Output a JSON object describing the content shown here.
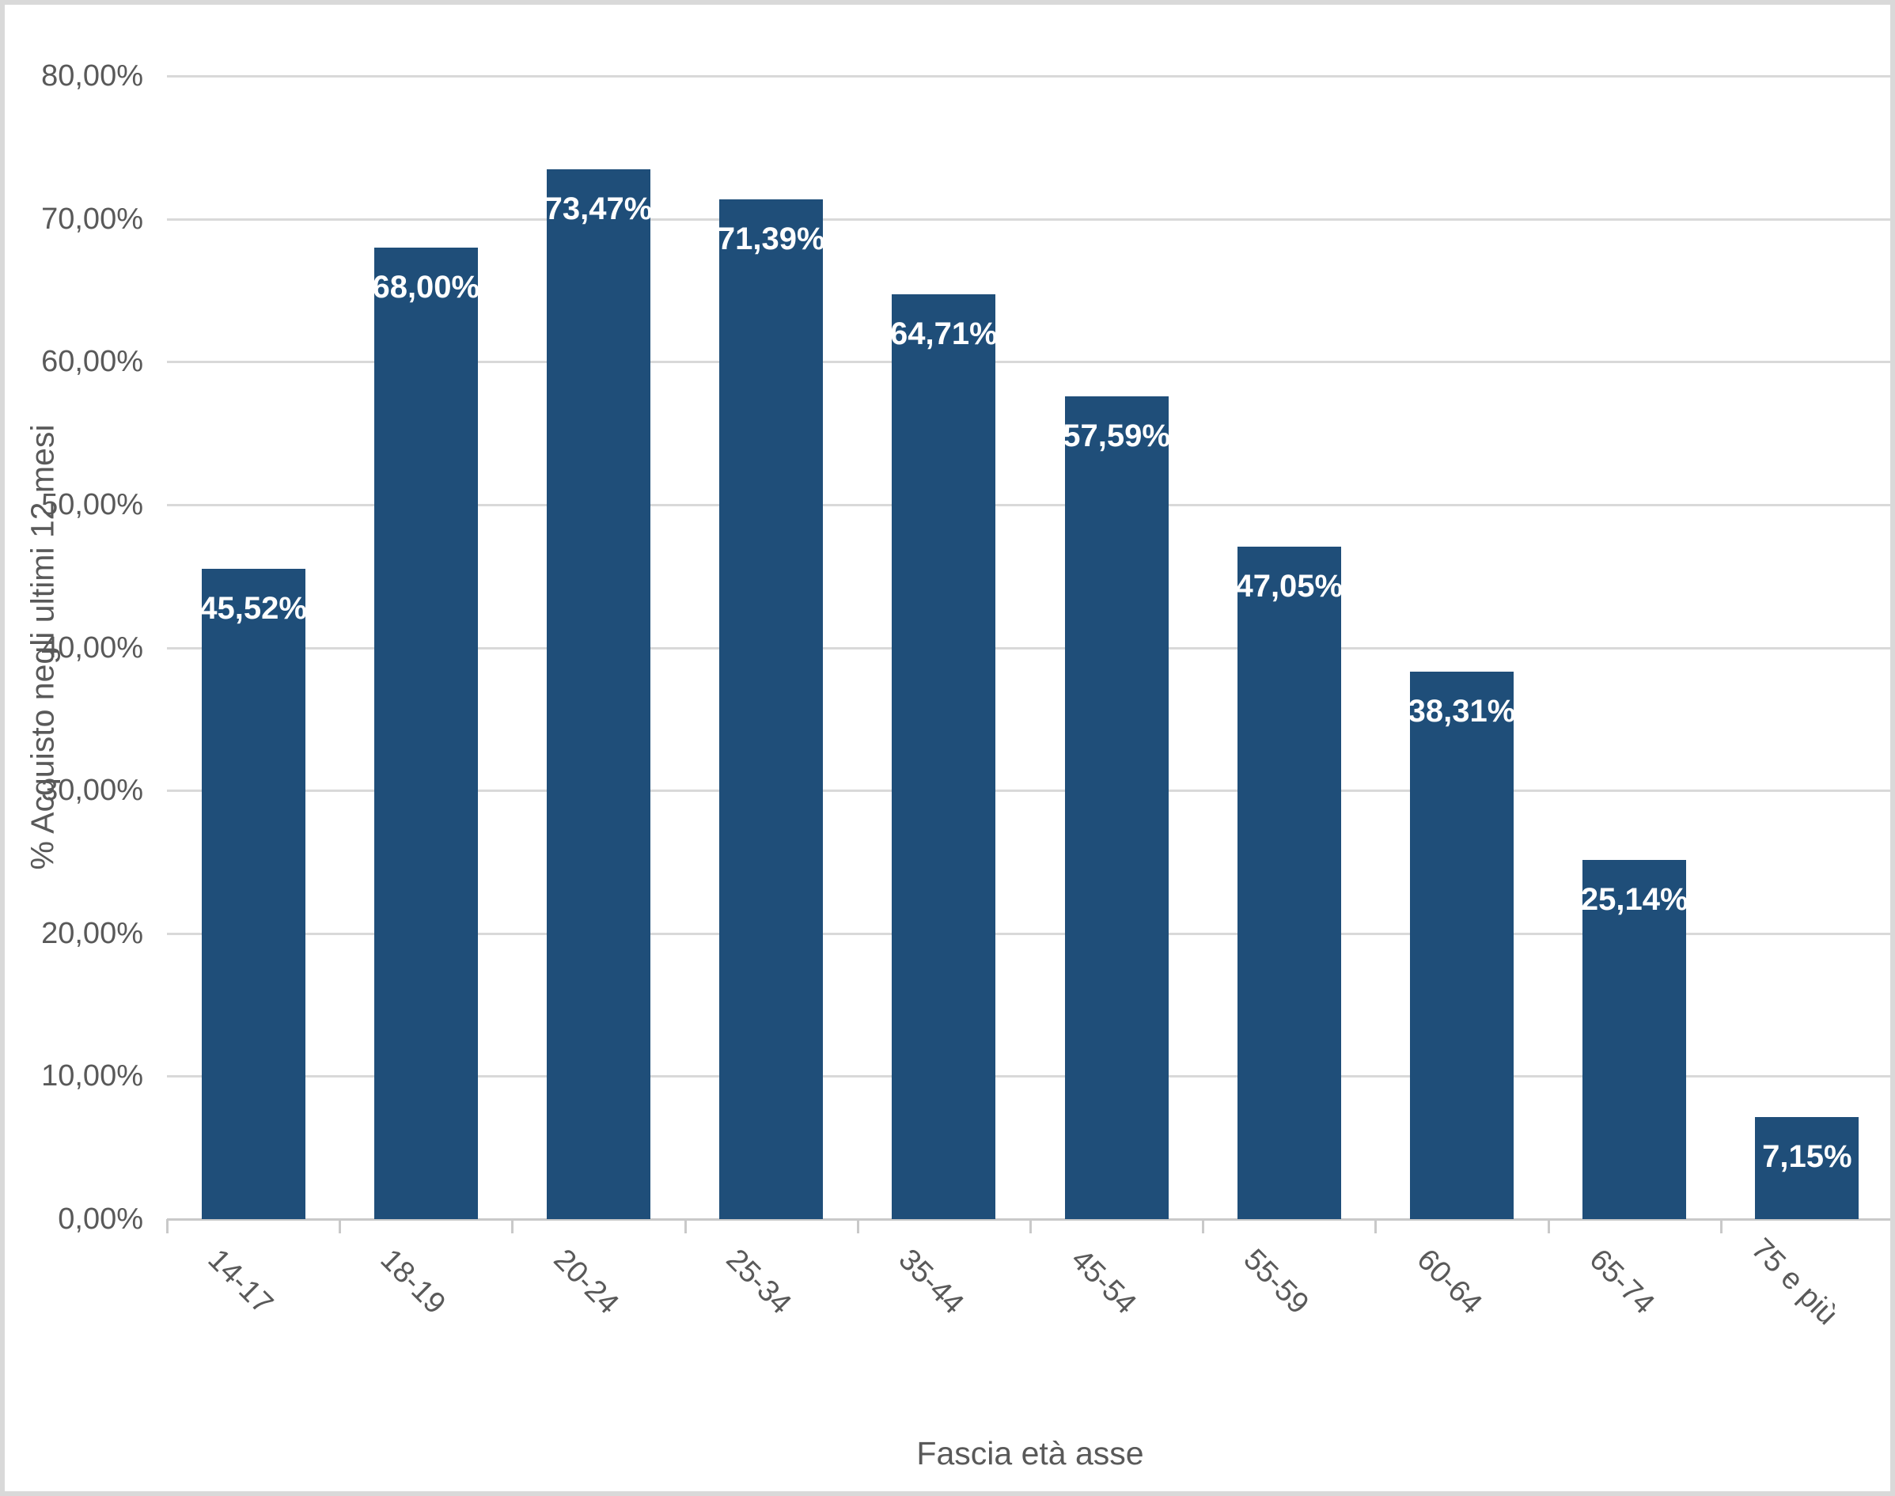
{
  "chart_data": {
    "type": "bar",
    "title": "",
    "xlabel": "Fascia età asse",
    "ylabel": "% Acquisto negli ultimi 12 mesi",
    "categories": [
      "14-17",
      "18-19",
      "20-24",
      "25-34",
      "35-44",
      "45-54",
      "55-59",
      "60-64",
      "65-74",
      "75 e più"
    ],
    "values": [
      45.52,
      68.0,
      73.47,
      71.39,
      64.71,
      57.59,
      47.05,
      38.31,
      25.14,
      7.15
    ],
    "value_labels": [
      "45,52%",
      "68,00%",
      "73,47%",
      "71,39%",
      "64,71%",
      "57,59%",
      "47,05%",
      "38,31%",
      "25,14%",
      "7,15%"
    ],
    "ylim": [
      0,
      80
    ],
    "ytick_step": 10,
    "ytick_labels": [
      "0,00%",
      "10,00%",
      "20,00%",
      "30,00%",
      "40,00%",
      "50,00%",
      "60,00%",
      "70,00%",
      "80,00%"
    ],
    "grid": true,
    "legend": "none",
    "decimal_separator": ",",
    "colors": {
      "bar": "#1F4E79",
      "grid": "#D9D9D9",
      "axis": "#C9C9C9",
      "tick_text": "#595959",
      "axis_title_text": "#595959",
      "data_label_text": "#FFFFFF",
      "border": "#D9D9D9",
      "background": "#FFFFFF"
    }
  }
}
